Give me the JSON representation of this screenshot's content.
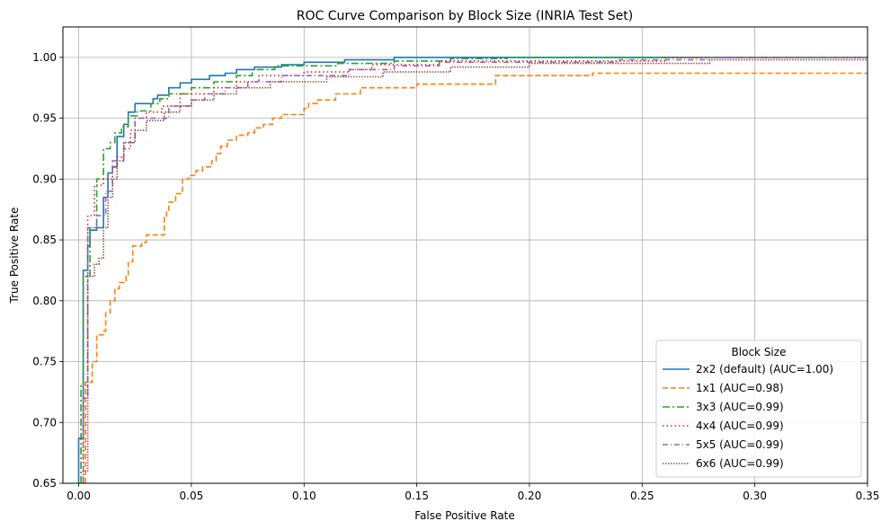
{
  "chart_data": {
    "type": "line",
    "title": "ROC Curve Comparison by Block Size (INRIA Test Set)",
    "xlabel": "False Positive Rate",
    "ylabel": "True Positive Rate",
    "xlim": [
      -0.007,
      0.35
    ],
    "ylim": [
      0.65,
      1.025
    ],
    "xticks": [
      "0.00",
      "0.05",
      "0.10",
      "0.15",
      "0.20",
      "0.25",
      "0.30",
      "0.35"
    ],
    "yticks": [
      "0.65",
      "0.70",
      "0.75",
      "0.80",
      "0.85",
      "0.90",
      "0.95",
      "1.00"
    ],
    "grid": true,
    "legend": {
      "title": "Block Size",
      "placement": "lower-right"
    },
    "series": [
      {
        "name": "2x2 (default) (AUC=1.00)",
        "color": "#1f77b4",
        "dash": "solid",
        "points": [
          [
            0.0,
            0.65
          ],
          [
            0.0,
            0.687
          ],
          [
            0.002,
            0.687
          ],
          [
            0.002,
            0.825
          ],
          [
            0.004,
            0.825
          ],
          [
            0.004,
            0.845
          ],
          [
            0.005,
            0.845
          ],
          [
            0.005,
            0.858
          ],
          [
            0.008,
            0.858
          ],
          [
            0.008,
            0.86
          ],
          [
            0.011,
            0.86
          ],
          [
            0.011,
            0.885
          ],
          [
            0.013,
            0.885
          ],
          [
            0.013,
            0.905
          ],
          [
            0.015,
            0.905
          ],
          [
            0.015,
            0.91
          ],
          [
            0.017,
            0.91
          ],
          [
            0.017,
            0.935
          ],
          [
            0.02,
            0.935
          ],
          [
            0.02,
            0.945
          ],
          [
            0.022,
            0.945
          ],
          [
            0.022,
            0.955
          ],
          [
            0.025,
            0.955
          ],
          [
            0.025,
            0.962
          ],
          [
            0.033,
            0.962
          ],
          [
            0.033,
            0.966
          ],
          [
            0.035,
            0.966
          ],
          [
            0.035,
            0.969
          ],
          [
            0.04,
            0.969
          ],
          [
            0.04,
            0.975
          ],
          [
            0.045,
            0.975
          ],
          [
            0.045,
            0.979
          ],
          [
            0.05,
            0.979
          ],
          [
            0.05,
            0.982
          ],
          [
            0.058,
            0.982
          ],
          [
            0.058,
            0.985
          ],
          [
            0.065,
            0.985
          ],
          [
            0.065,
            0.987
          ],
          [
            0.07,
            0.987
          ],
          [
            0.07,
            0.99
          ],
          [
            0.078,
            0.99
          ],
          [
            0.078,
            0.992
          ],
          [
            0.09,
            0.992
          ],
          [
            0.09,
            0.994
          ],
          [
            0.1,
            0.994
          ],
          [
            0.1,
            0.996
          ],
          [
            0.118,
            0.996
          ],
          [
            0.118,
            0.998
          ],
          [
            0.14,
            0.998
          ],
          [
            0.14,
            1.0
          ],
          [
            0.35,
            1.0
          ]
        ]
      },
      {
        "name": "1x1 (AUC=0.98)",
        "color": "#ff7f0e",
        "dash": "6,3",
        "points": [
          [
            0.003,
            0.65
          ],
          [
            0.003,
            0.733
          ],
          [
            0.006,
            0.733
          ],
          [
            0.006,
            0.75
          ],
          [
            0.008,
            0.75
          ],
          [
            0.008,
            0.772
          ],
          [
            0.011,
            0.772
          ],
          [
            0.011,
            0.775
          ],
          [
            0.012,
            0.775
          ],
          [
            0.012,
            0.79
          ],
          [
            0.014,
            0.79
          ],
          [
            0.014,
            0.8
          ],
          [
            0.016,
            0.8
          ],
          [
            0.016,
            0.81
          ],
          [
            0.018,
            0.81
          ],
          [
            0.018,
            0.815
          ],
          [
            0.021,
            0.815
          ],
          [
            0.021,
            0.82
          ],
          [
            0.022,
            0.82
          ],
          [
            0.022,
            0.832
          ],
          [
            0.024,
            0.832
          ],
          [
            0.024,
            0.845
          ],
          [
            0.028,
            0.845
          ],
          [
            0.028,
            0.848
          ],
          [
            0.03,
            0.848
          ],
          [
            0.03,
            0.854
          ],
          [
            0.038,
            0.854
          ],
          [
            0.038,
            0.868
          ],
          [
            0.039,
            0.868
          ],
          [
            0.039,
            0.873
          ],
          [
            0.04,
            0.873
          ],
          [
            0.04,
            0.881
          ],
          [
            0.043,
            0.881
          ],
          [
            0.043,
            0.888
          ],
          [
            0.046,
            0.888
          ],
          [
            0.046,
            0.9
          ],
          [
            0.049,
            0.9
          ],
          [
            0.049,
            0.903
          ],
          [
            0.052,
            0.903
          ],
          [
            0.052,
            0.907
          ],
          [
            0.055,
            0.907
          ],
          [
            0.055,
            0.91
          ],
          [
            0.059,
            0.91
          ],
          [
            0.059,
            0.915
          ],
          [
            0.061,
            0.915
          ],
          [
            0.061,
            0.921
          ],
          [
            0.063,
            0.921
          ],
          [
            0.063,
            0.927
          ],
          [
            0.066,
            0.927
          ],
          [
            0.066,
            0.932
          ],
          [
            0.07,
            0.932
          ],
          [
            0.07,
            0.936
          ],
          [
            0.075,
            0.936
          ],
          [
            0.075,
            0.938
          ],
          [
            0.078,
            0.938
          ],
          [
            0.078,
            0.942
          ],
          [
            0.082,
            0.942
          ],
          [
            0.082,
            0.945
          ],
          [
            0.086,
            0.945
          ],
          [
            0.086,
            0.95
          ],
          [
            0.09,
            0.95
          ],
          [
            0.09,
            0.953
          ],
          [
            0.1,
            0.953
          ],
          [
            0.1,
            0.958
          ],
          [
            0.102,
            0.958
          ],
          [
            0.102,
            0.962
          ],
          [
            0.106,
            0.962
          ],
          [
            0.106,
            0.965
          ],
          [
            0.114,
            0.965
          ],
          [
            0.114,
            0.97
          ],
          [
            0.125,
            0.97
          ],
          [
            0.125,
            0.975
          ],
          [
            0.15,
            0.975
          ],
          [
            0.15,
            0.978
          ],
          [
            0.185,
            0.978
          ],
          [
            0.185,
            0.985
          ],
          [
            0.228,
            0.985
          ],
          [
            0.228,
            0.987
          ],
          [
            0.35,
            0.987
          ]
        ]
      },
      {
        "name": "3x3 (AUC=0.99)",
        "color": "#2ca02c",
        "dash": "8,3,2,3",
        "points": [
          [
            0.001,
            0.65
          ],
          [
            0.001,
            0.73
          ],
          [
            0.002,
            0.73
          ],
          [
            0.002,
            0.82
          ],
          [
            0.005,
            0.82
          ],
          [
            0.005,
            0.86
          ],
          [
            0.008,
            0.86
          ],
          [
            0.008,
            0.9
          ],
          [
            0.011,
            0.9
          ],
          [
            0.011,
            0.925
          ],
          [
            0.014,
            0.925
          ],
          [
            0.014,
            0.93
          ],
          [
            0.016,
            0.93
          ],
          [
            0.016,
            0.938
          ],
          [
            0.019,
            0.938
          ],
          [
            0.019,
            0.943
          ],
          [
            0.022,
            0.943
          ],
          [
            0.022,
            0.952
          ],
          [
            0.026,
            0.952
          ],
          [
            0.026,
            0.956
          ],
          [
            0.032,
            0.956
          ],
          [
            0.032,
            0.962
          ],
          [
            0.036,
            0.962
          ],
          [
            0.036,
            0.966
          ],
          [
            0.04,
            0.966
          ],
          [
            0.04,
            0.97
          ],
          [
            0.05,
            0.97
          ],
          [
            0.05,
            0.975
          ],
          [
            0.06,
            0.975
          ],
          [
            0.06,
            0.98
          ],
          [
            0.07,
            0.98
          ],
          [
            0.07,
            0.985
          ],
          [
            0.077,
            0.985
          ],
          [
            0.077,
            0.99
          ],
          [
            0.087,
            0.99
          ],
          [
            0.087,
            0.993
          ],
          [
            0.115,
            0.993
          ],
          [
            0.115,
            0.995
          ],
          [
            0.14,
            0.995
          ],
          [
            0.14,
            0.997
          ],
          [
            0.165,
            0.997
          ],
          [
            0.165,
            0.999
          ],
          [
            0.19,
            0.999
          ],
          [
            0.19,
            1.0
          ],
          [
            0.35,
            1.0
          ]
        ]
      },
      {
        "name": "4x4 (AUC=0.99)",
        "color": "#d62728",
        "dash": "1.5,3",
        "points": [
          [
            0.002,
            0.65
          ],
          [
            0.002,
            0.72
          ],
          [
            0.004,
            0.72
          ],
          [
            0.004,
            0.87
          ],
          [
            0.007,
            0.87
          ],
          [
            0.007,
            0.895
          ],
          [
            0.011,
            0.895
          ],
          [
            0.011,
            0.9
          ],
          [
            0.015,
            0.9
          ],
          [
            0.015,
            0.91
          ],
          [
            0.017,
            0.91
          ],
          [
            0.017,
            0.918
          ],
          [
            0.02,
            0.918
          ],
          [
            0.02,
            0.925
          ],
          [
            0.023,
            0.925
          ],
          [
            0.023,
            0.94
          ],
          [
            0.025,
            0.94
          ],
          [
            0.025,
            0.95
          ],
          [
            0.03,
            0.95
          ],
          [
            0.03,
            0.955
          ],
          [
            0.037,
            0.955
          ],
          [
            0.037,
            0.96
          ],
          [
            0.045,
            0.96
          ],
          [
            0.045,
            0.97
          ],
          [
            0.06,
            0.97
          ],
          [
            0.06,
            0.975
          ],
          [
            0.07,
            0.975
          ],
          [
            0.07,
            0.98
          ],
          [
            0.08,
            0.98
          ],
          [
            0.08,
            0.985
          ],
          [
            0.1,
            0.985
          ],
          [
            0.1,
            0.988
          ],
          [
            0.12,
            0.988
          ],
          [
            0.12,
            0.99
          ],
          [
            0.13,
            0.99
          ],
          [
            0.13,
            0.994
          ],
          [
            0.16,
            0.994
          ],
          [
            0.16,
            0.997
          ],
          [
            0.26,
            0.997
          ],
          [
            0.26,
            1.0
          ],
          [
            0.35,
            1.0
          ]
        ]
      },
      {
        "name": "5x5 (AUC=0.99)",
        "color": "#9467bd",
        "dash": "6,3,1,3",
        "points": [
          [
            0.002,
            0.65
          ],
          [
            0.002,
            0.72
          ],
          [
            0.004,
            0.72
          ],
          [
            0.004,
            0.86
          ],
          [
            0.008,
            0.86
          ],
          [
            0.008,
            0.87
          ],
          [
            0.012,
            0.87
          ],
          [
            0.012,
            0.89
          ],
          [
            0.015,
            0.89
          ],
          [
            0.015,
            0.915
          ],
          [
            0.02,
            0.915
          ],
          [
            0.02,
            0.93
          ],
          [
            0.025,
            0.93
          ],
          [
            0.025,
            0.95
          ],
          [
            0.04,
            0.95
          ],
          [
            0.04,
            0.96
          ],
          [
            0.05,
            0.96
          ],
          [
            0.05,
            0.965
          ],
          [
            0.056,
            0.965
          ],
          [
            0.056,
            0.97
          ],
          [
            0.065,
            0.97
          ],
          [
            0.065,
            0.975
          ],
          [
            0.075,
            0.975
          ],
          [
            0.075,
            0.98
          ],
          [
            0.09,
            0.98
          ],
          [
            0.09,
            0.985
          ],
          [
            0.12,
            0.985
          ],
          [
            0.12,
            0.99
          ],
          [
            0.14,
            0.99
          ],
          [
            0.14,
            0.993
          ],
          [
            0.16,
            0.993
          ],
          [
            0.16,
            0.996
          ],
          [
            0.24,
            0.996
          ],
          [
            0.24,
            0.998
          ],
          [
            0.28,
            0.998
          ],
          [
            0.28,
            1.0
          ],
          [
            0.35,
            1.0
          ]
        ]
      },
      {
        "name": "6x6 (AUC=0.99)",
        "color": "#8c564b",
        "dash": "1.5,1.5",
        "points": [
          [
            0.002,
            0.65
          ],
          [
            0.002,
            0.66
          ],
          [
            0.004,
            0.66
          ],
          [
            0.004,
            0.82
          ],
          [
            0.007,
            0.82
          ],
          [
            0.007,
            0.83
          ],
          [
            0.009,
            0.83
          ],
          [
            0.009,
            0.835
          ],
          [
            0.011,
            0.835
          ],
          [
            0.011,
            0.86
          ],
          [
            0.013,
            0.86
          ],
          [
            0.013,
            0.885
          ],
          [
            0.015,
            0.885
          ],
          [
            0.015,
            0.9
          ],
          [
            0.017,
            0.9
          ],
          [
            0.017,
            0.915
          ],
          [
            0.02,
            0.915
          ],
          [
            0.02,
            0.93
          ],
          [
            0.025,
            0.93
          ],
          [
            0.025,
            0.94
          ],
          [
            0.03,
            0.94
          ],
          [
            0.03,
            0.948
          ],
          [
            0.038,
            0.948
          ],
          [
            0.038,
            0.955
          ],
          [
            0.045,
            0.955
          ],
          [
            0.045,
            0.96
          ],
          [
            0.05,
            0.96
          ],
          [
            0.05,
            0.965
          ],
          [
            0.06,
            0.965
          ],
          [
            0.06,
            0.97
          ],
          [
            0.07,
            0.97
          ],
          [
            0.07,
            0.975
          ],
          [
            0.085,
            0.975
          ],
          [
            0.085,
            0.98
          ],
          [
            0.11,
            0.98
          ],
          [
            0.11,
            0.984
          ],
          [
            0.135,
            0.984
          ],
          [
            0.135,
            0.988
          ],
          [
            0.165,
            0.988
          ],
          [
            0.165,
            0.992
          ],
          [
            0.2,
            0.992
          ],
          [
            0.2,
            0.995
          ],
          [
            0.28,
            0.995
          ],
          [
            0.28,
            0.998
          ],
          [
            0.35,
            0.998
          ]
        ]
      }
    ]
  }
}
